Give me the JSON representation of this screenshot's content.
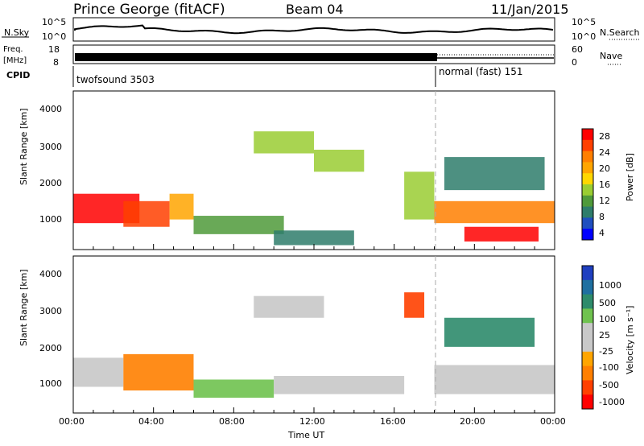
{
  "header": {
    "station": "Prince George (fitACF)",
    "beam": "Beam 04",
    "date": "11/Jan/2015"
  },
  "top_panels": {
    "nsky": {
      "label": "N.Sky",
      "y_ticks": [
        "10^5",
        "10^0"
      ]
    },
    "nsearch": {
      "label": "N.Search",
      "y_ticks": [
        "10^5",
        "10^0"
      ]
    },
    "freq": {
      "label_line1": "Freq.",
      "label_line2": "[MHz]",
      "y_ticks": [
        "18",
        "8"
      ]
    },
    "nave": {
      "label": "Nave",
      "y_ticks": [
        "60",
        "0"
      ]
    },
    "cpid": {
      "label": "CPID",
      "modes": [
        {
          "name": "twofsound 3503",
          "start_hour": 0,
          "end_hour": 18
        },
        {
          "name": "normal (fast) 151",
          "start_hour": 18,
          "end_hour": 24
        }
      ]
    }
  },
  "x_axis": {
    "label": "Time UT",
    "ticks": [
      "00:00",
      "04:00",
      "08:00",
      "12:00",
      "16:00",
      "20:00",
      "00:00"
    ]
  },
  "power_panel": {
    "ylabel": "Slant Range [km]",
    "y_ticks": [
      "4000",
      "3000",
      "2000",
      "1000"
    ],
    "colorbar_label": "Power [dB]",
    "colorbar_ticks": [
      "28",
      "24",
      "20",
      "16",
      "12",
      "8",
      "4"
    ],
    "colors": [
      "#0000ff",
      "#1f4fbf",
      "#2e7d6b",
      "#4f9a3a",
      "#9acd32",
      "#ffd700",
      "#ffa500",
      "#ff7f00",
      "#ff4000",
      "#ff0000"
    ]
  },
  "velocity_panel": {
    "ylabel": "Slant Range [km]",
    "y_ticks": [
      "4000",
      "3000",
      "2000",
      "1000"
    ],
    "colorbar_label": "Velocity [m s⁻¹]",
    "colorbar_ticks": [
      "1000",
      "500",
      "100",
      "25",
      "-25",
      "-100",
      "-500",
      "-1000"
    ],
    "colors": [
      "#1f3fbf",
      "#1f6fa0",
      "#2e8b6b",
      "#6fc24f",
      "#c8c8c8",
      "#c8c8c8",
      "#ffa500",
      "#ff7f00",
      "#ff4000",
      "#ff0000"
    ]
  },
  "chart_data": {
    "type": "heatmap",
    "x_range_hours": [
      0,
      24
    ],
    "y_range_km": [
      180,
      4500
    ],
    "power_regions": [
      {
        "t0": 0.0,
        "t1": 3.3,
        "r0": 900,
        "r1": 1700,
        "power_db": 27
      },
      {
        "t0": 2.5,
        "t1": 4.8,
        "r0": 800,
        "r1": 1500,
        "power_db": 24
      },
      {
        "t0": 4.8,
        "t1": 6.0,
        "r0": 1000,
        "r1": 1700,
        "power_db": 18
      },
      {
        "t0": 6.0,
        "t1": 10.5,
        "r0": 600,
        "r1": 1100,
        "power_db": 10
      },
      {
        "t0": 10.0,
        "t1": 14.0,
        "r0": 300,
        "r1": 700,
        "power_db": 8
      },
      {
        "t0": 9.0,
        "t1": 12.0,
        "r0": 2800,
        "r1": 3400,
        "power_db": 14
      },
      {
        "t0": 12.0,
        "t1": 14.5,
        "r0": 2300,
        "r1": 2900,
        "power_db": 12
      },
      {
        "t0": 16.5,
        "t1": 18.0,
        "r0": 1000,
        "r1": 2300,
        "power_db": 12
      },
      {
        "t0": 18.0,
        "t1": 24.0,
        "r0": 900,
        "r1": 1500,
        "power_db": 22
      },
      {
        "t0": 19.5,
        "t1": 23.2,
        "r0": 400,
        "r1": 800,
        "power_db": 28
      },
      {
        "t0": 18.5,
        "t1": 23.5,
        "r0": 1800,
        "r1": 2700,
        "power_db": 8
      }
    ],
    "velocity_regions": [
      {
        "t0": 0.0,
        "t1": 2.5,
        "r0": 900,
        "r1": 1700,
        "velocity": 0
      },
      {
        "t0": 2.5,
        "t1": 6.0,
        "r0": 800,
        "r1": 1800,
        "velocity": -300
      },
      {
        "t0": 6.0,
        "t1": 10.0,
        "r0": 600,
        "r1": 1100,
        "velocity": 50
      },
      {
        "t0": 9.0,
        "t1": 12.5,
        "r0": 2800,
        "r1": 3400,
        "velocity": 0
      },
      {
        "t0": 10.0,
        "t1": 16.5,
        "r0": 700,
        "r1": 1200,
        "velocity": 0
      },
      {
        "t0": 16.5,
        "t1": 17.5,
        "r0": 2800,
        "r1": 3500,
        "velocity": -800
      },
      {
        "t0": 18.0,
        "t1": 24.0,
        "r0": 700,
        "r1": 1500,
        "velocity": 0
      },
      {
        "t0": 18.5,
        "t1": 23.0,
        "r0": 2000,
        "r1": 2800,
        "velocity": 300
      }
    ]
  }
}
